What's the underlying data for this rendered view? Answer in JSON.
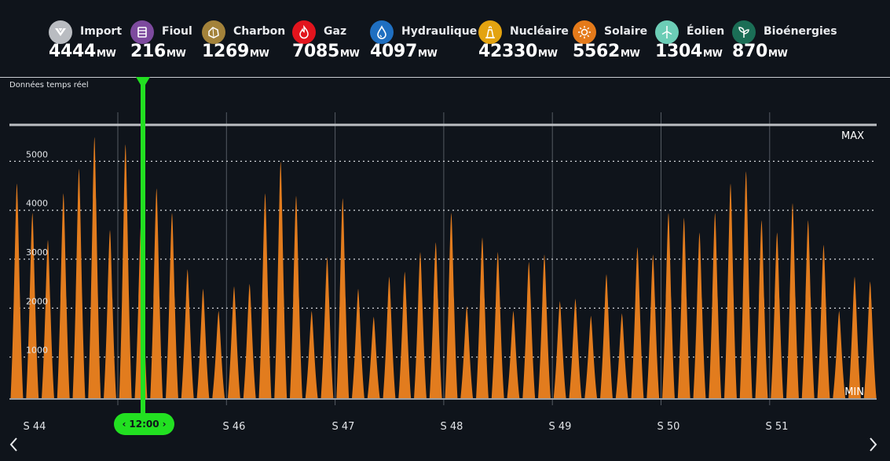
{
  "legend": {
    "sources": [
      {
        "name": "Import",
        "value": "4444",
        "unit": "MW",
        "color": "#b9bcc1",
        "icon": "import-icon"
      },
      {
        "name": "Fioul",
        "value": "216",
        "unit": "MW",
        "color": "#7d4a9e",
        "icon": "fuel-oil-icon"
      },
      {
        "name": "Charbon",
        "value": "1269",
        "unit": "MW",
        "color": "#a3823a",
        "icon": "coal-icon"
      },
      {
        "name": "Gaz",
        "value": "7085",
        "unit": "MW",
        "color": "#e2141d",
        "icon": "gas-flame-icon"
      },
      {
        "name": "Hydraulique",
        "value": "4097",
        "unit": "MW",
        "color": "#1f6fc1",
        "icon": "water-drop-icon"
      },
      {
        "name": "Nucléaire",
        "value": "42330",
        "unit": "MW",
        "color": "#e3a310",
        "icon": "nuclear-icon"
      },
      {
        "name": "Solaire",
        "value": "5562",
        "unit": "MW",
        "color": "#e47a1a",
        "icon": "sun-icon"
      },
      {
        "name": "Éolien",
        "value": "1304",
        "unit": "MW",
        "color": "#6ccdb6",
        "icon": "wind-turbine-icon"
      },
      {
        "name": "Bioénergies",
        "value": "870",
        "unit": "MW",
        "color": "#1b6e56",
        "icon": "leaf-icon"
      }
    ]
  },
  "realtime_label": "Données temps réel",
  "cursor": {
    "time": "12:00"
  },
  "chart_data": {
    "type": "area",
    "series_color": "#e27c1e",
    "yticks": [
      1000,
      2000,
      3000,
      4000,
      5000
    ],
    "ylim": [
      0,
      5600
    ],
    "max_label": "MAX",
    "min_label": "MIN",
    "week_labels": [
      "S 44",
      "S 46",
      "S 47",
      "S 48",
      "S 49",
      "S 50",
      "S 51"
    ],
    "daily_peaks": [
      4400,
      3800,
      3250,
      4200,
      4700,
      5350,
      3450,
      5200,
      3600,
      4300,
      3800,
      2650,
      2250,
      1800,
      2300,
      2350,
      4200,
      4850,
      4150,
      1800,
      2900,
      4100,
      2250,
      1680,
      2500,
      2600,
      3000,
      3200,
      3800,
      1900,
      3300,
      3000,
      1800,
      2800,
      2950,
      2000,
      2050,
      1700,
      2550,
      1750,
      3100,
      2950,
      3800,
      3700,
      3400,
      3800,
      4400,
      4650,
      3650,
      3400,
      4000,
      3650,
      3150,
      1800,
      2500,
      2400
    ]
  }
}
